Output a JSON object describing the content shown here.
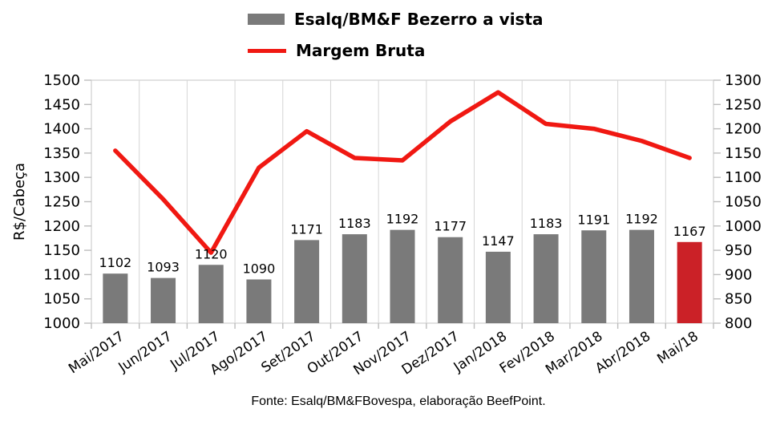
{
  "legend": [
    {
      "label": "Esalq/BM&F Bezerro a vista",
      "type": "bar",
      "color": "#7a7a7a"
    },
    {
      "label": "Margem Bruta",
      "type": "line",
      "color": "#f01812"
    }
  ],
  "footer": "Fonte: Esalq/BM&FBovespa, elaboração BeefPoint.",
  "colors": {
    "bar_gray": "#7a7a7a",
    "bar_highlight_red": "#cb2127",
    "line_red": "#f01812",
    "grid_gray": "#d5d5d5",
    "tick_gray": "#bdbdbd",
    "text_black": "#000000"
  },
  "chart_data": {
    "type": "bar",
    "subtype": "bar+line combo, dual axis",
    "categories": [
      "Mai/2017",
      "Jun/2017",
      "Jul/2017",
      "Ago/2017",
      "Set/2017",
      "Out/2017",
      "Nov/2017",
      "Dez/2017",
      "Jan/2018",
      "Fev/2018",
      "Mar/2018",
      "Abr/2018",
      "Mai/18"
    ],
    "series": [
      {
        "name": "Esalq/BM&F Bezerro a vista",
        "type": "bar",
        "axis": "left",
        "values": [
          1102,
          1093,
          1120,
          1090,
          1171,
          1183,
          1192,
          1177,
          1147,
          1183,
          1191,
          1192,
          1167
        ],
        "color": "#7a7a7a",
        "highlight_last_color": "#cb2127",
        "data_labels": true
      },
      {
        "name": "Margem Bruta",
        "type": "line",
        "axis": "right",
        "values": [
          1155,
          1055,
          945,
          1120,
          1195,
          1140,
          1135,
          1215,
          1275,
          1210,
          1200,
          1175,
          1140
        ],
        "color": "#f01812"
      }
    ],
    "left_axis": {
      "title": "R$/Cabeça",
      "min": 1000,
      "max": 1500,
      "step": 50
    },
    "right_axis": {
      "title": "",
      "min": 800,
      "max": 1300,
      "step": 50
    },
    "gridlines": "vertical-only",
    "legend_position": "top-center",
    "source_note": "Fonte: Esalq/BM&FBovespa, elaboração BeefPoint."
  }
}
